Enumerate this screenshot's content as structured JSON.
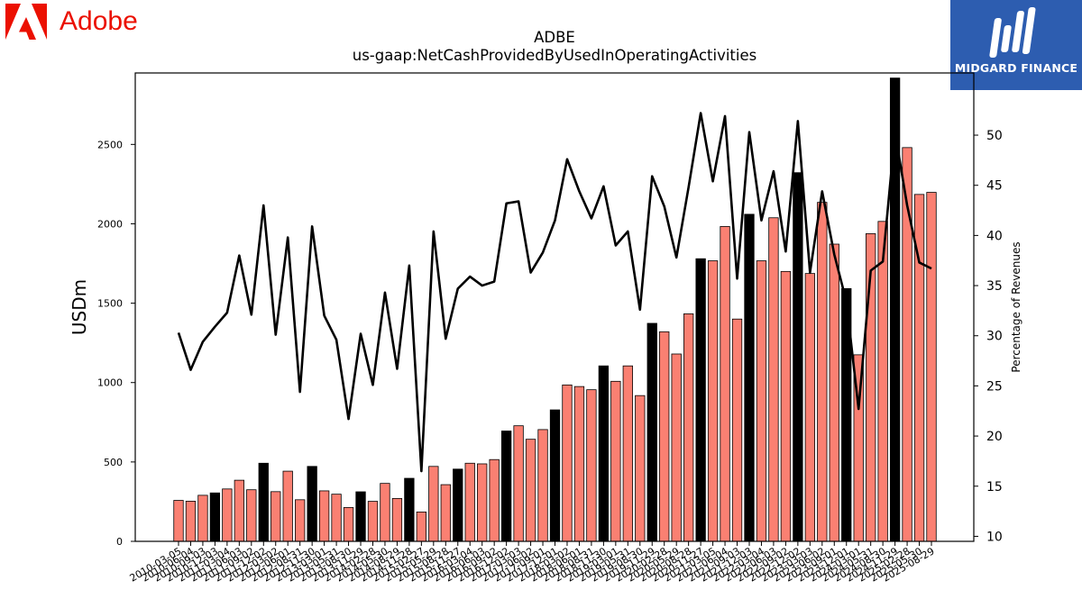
{
  "brand": {
    "name": "Adobe",
    "logo_icon": "adobe-logo-icon",
    "color": "#eb1000"
  },
  "badge": {
    "text": "MIDGARD FINANCE",
    "icon": "midgard-logo-icon",
    "color": "#2d5db0"
  },
  "chart_data": {
    "type": "bar",
    "title": "ADBE",
    "subtitle": "us-gaap:NetCashProvidedByUsedInOperatingActivities",
    "ylabel": "USDm",
    "y2label": "Percentage of Revenues",
    "ylim": [
      0,
      2950
    ],
    "y2lim": [
      9.5,
      56.2
    ],
    "yticks": [
      0,
      500,
      1000,
      1500,
      2000,
      2500
    ],
    "y2ticks": [
      10,
      15,
      20,
      25,
      30,
      35,
      40,
      45,
      50
    ],
    "grid": false,
    "legend": "none",
    "x_tick_labels": [
      "2010-03-05",
      "2010-06-04",
      "2010-09-03",
      "2010-12-03",
      "2011-03-04",
      "2011-06-03",
      "2011-09-02",
      "2011-12-02",
      "2012-03-02",
      "2012-06-01",
      "2012-08-31",
      "2012-11-30",
      "2013-03-01",
      "2013-05-31",
      "2013-08-30",
      "2013-11-29",
      "2014-02-28",
      "2014-05-30",
      "2014-08-29",
      "2014-11-28",
      "2015-02-27",
      "2015-05-29",
      "2015-08-28",
      "2015-11-27",
      "2016-03-04",
      "2016-06-03",
      "2016-09-02",
      "2016-12-02",
      "2017-03-03",
      "2017-06-02",
      "2017-09-01",
      "2017-12-01",
      "2018-03-02",
      "2018-06-01",
      "2018-08-31",
      "2018-11-30",
      "2019-03-01",
      "2019-05-31",
      "2019-08-30",
      "2019-11-29",
      "2020-02-28",
      "2020-05-29",
      "2020-08-28",
      "2020-11-27",
      "2021-03-05",
      "2021-06-04",
      "2021-09-03",
      "2021-12-03",
      "2022-03-04",
      "2022-06-03",
      "2022-09-02",
      "2022-12-02",
      "2023-03-03",
      "2023-06-02",
      "2023-09-01",
      "2023-12-01",
      "2024-03-01",
      "2024-05-31",
      "2024-08-30",
      "2024-11-29",
      "2025-02-28",
      "2025-05-30",
      "2025-08-29"
    ],
    "x_tick_labels_visible": [
      "2010-03-05",
      "2010-06-04",
      "2010-09-03",
      "2010-12-03",
      "2011-03-04",
      "2011-06-03",
      "2011-09-02",
      "2011-12-02",
      "2012-03-02",
      "2012-06-01",
      "2012-08-31",
      "2012-11-30",
      "2013-03-01",
      "2013-05-31",
      "2013-08-30",
      "2013-11-29",
      "2014-02-28",
      "2014-05-30",
      "2014-08-29",
      "2014-11-28",
      "2015-02-27",
      "2015-05-29",
      "2015-08-28",
      "2015-11-27",
      "2016-03-04",
      "2016-06-03",
      "2016-09-02",
      "2016-12-02",
      "2017-03-03",
      "2017-06-02",
      "2017-09-01",
      "2017-12-01",
      "2018-03-02",
      "2018-06-01",
      "2018-08-31",
      "2018-11-30",
      "2019-03-01",
      "2019-05-31",
      "2019-08-30",
      "2019-11-29",
      "2020-02-28",
      "2020-05-29",
      "2020-08-28",
      "2020-11-27",
      "2021-03-05",
      "2021-06-04",
      "2021-09-03",
      "2021-12-03",
      "2022-03-04",
      "2022-06-03",
      "2022-09-02",
      "2022-12-02",
      "2023-03-03",
      "2023-06-02",
      "2023-09-01",
      "2023-12-01",
      "2024-03-01",
      "2024-05-31",
      "2024-08-30",
      "2024-11-29",
      "2025-02-28",
      "2025-05-30",
      "2025-08-29"
    ],
    "colors": {
      "quarter_bar": "#fa8072",
      "fiscal_year_bar": "#000000",
      "line": "#000000"
    },
    "bar_values": [
      258,
      253,
      290,
      305,
      330,
      385,
      325,
      492,
      313,
      442,
      262,
      472,
      318,
      297,
      213,
      312,
      252,
      365,
      270,
      397,
      185,
      472,
      357,
      455,
      492,
      488,
      515,
      695,
      728,
      643,
      704,
      828,
      985,
      975,
      955,
      1105,
      1008,
      1105,
      918,
      1373,
      1320,
      1180,
      1433,
      1780,
      1767,
      1983,
      1400,
      2060,
      1767,
      2038,
      1700,
      2322,
      1687,
      2135,
      1872,
      1592,
      1175,
      1938,
      2015,
      2918,
      2480,
      2185,
      2198
    ],
    "fiscal_year_end": [
      false,
      false,
      false,
      true,
      false,
      false,
      false,
      true,
      false,
      false,
      false,
      true,
      false,
      false,
      false,
      true,
      false,
      false,
      false,
      true,
      false,
      false,
      false,
      true,
      false,
      false,
      false,
      true,
      false,
      false,
      false,
      true,
      false,
      false,
      false,
      true,
      false,
      false,
      false,
      true,
      false,
      false,
      false,
      true,
      false,
      false,
      false,
      true,
      false,
      false,
      false,
      true,
      false,
      false,
      false,
      true,
      false,
      false,
      false,
      true,
      false,
      false,
      false
    ],
    "line_values": [
      30.3,
      26.6,
      29.4,
      30.9,
      32.3,
      38.0,
      32.1,
      43.0,
      30.1,
      39.8,
      24.4,
      40.9,
      32.0,
      29.6,
      21.7,
      30.2,
      25.1,
      34.3,
      26.7,
      37.0,
      16.5,
      40.4,
      29.7,
      34.7,
      35.9,
      35.0,
      35.4,
      43.2,
      43.4,
      36.3,
      38.3,
      41.5,
      47.6,
      44.4,
      41.7,
      44.9,
      39.0,
      40.4,
      32.6,
      45.9,
      42.9,
      37.8,
      44.8,
      52.2,
      45.4,
      51.9,
      35.7,
      50.3,
      41.5,
      46.4,
      38.4,
      51.4,
      36.3,
      44.4,
      38.1,
      33.4,
      22.7,
      36.5,
      37.4,
      50.3,
      43.0,
      37.3,
      36.7
    ]
  }
}
